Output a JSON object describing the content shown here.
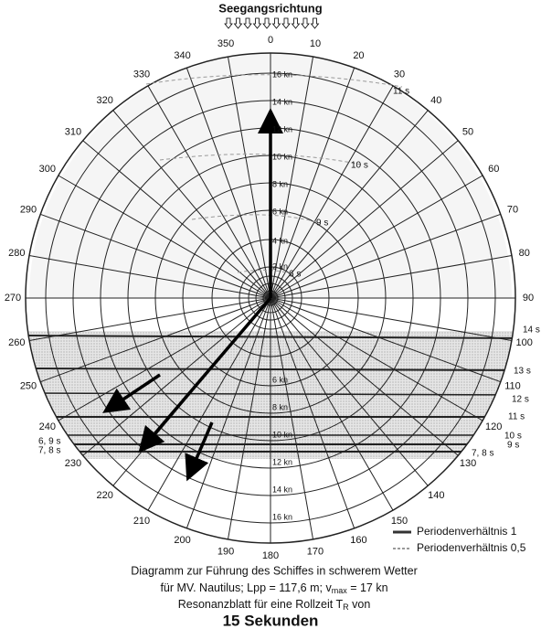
{
  "header": {
    "title": "Seegangsrichtung"
  },
  "angles": [
    "0",
    "10",
    "20",
    "30",
    "40",
    "50",
    "60",
    "70",
    "80",
    "90",
    "100",
    "110",
    "120",
    "130",
    "140",
    "150",
    "160",
    "170",
    "180",
    "190",
    "200",
    "210",
    "220",
    "230",
    "240",
    "250",
    "260",
    "270",
    "280",
    "290",
    "300",
    "310",
    "320",
    "330",
    "340",
    "350"
  ],
  "speeds_top": [
    "2 kn",
    "4 kn",
    "6 kn",
    "8 kn",
    "10 kn",
    "12 kn",
    "14 kn",
    "16 kn"
  ],
  "speeds_bottom": [
    "6 kn",
    "8 kn",
    "10 kn",
    "12 kn",
    "14 kn",
    "16 kn"
  ],
  "periods_upper": [
    "6 s",
    "9 s",
    "10 s",
    "11 s"
  ],
  "periods_right": [
    "14 s",
    "13 s",
    "12 s",
    "11 s",
    "10 s",
    "9 s",
    "7, 8 s"
  ],
  "periods_left": [
    "6, 9 s",
    "7, 8 s"
  ],
  "legend": [
    "Periodenverhältnis  1",
    "Periodenverhältnis 0,5"
  ],
  "caption": {
    "line1": "Diagramm zur Führung des Schiffes in schwerem Wetter",
    "line2": [
      "für MV. Nautilus; Lpp = 117,6 m; v",
      "max",
      " = 17 kn"
    ],
    "line3": [
      "Resonanzblatt für eine Rollzeit T",
      "R",
      " von"
    ],
    "line4": "15 Sekunden"
  }
}
